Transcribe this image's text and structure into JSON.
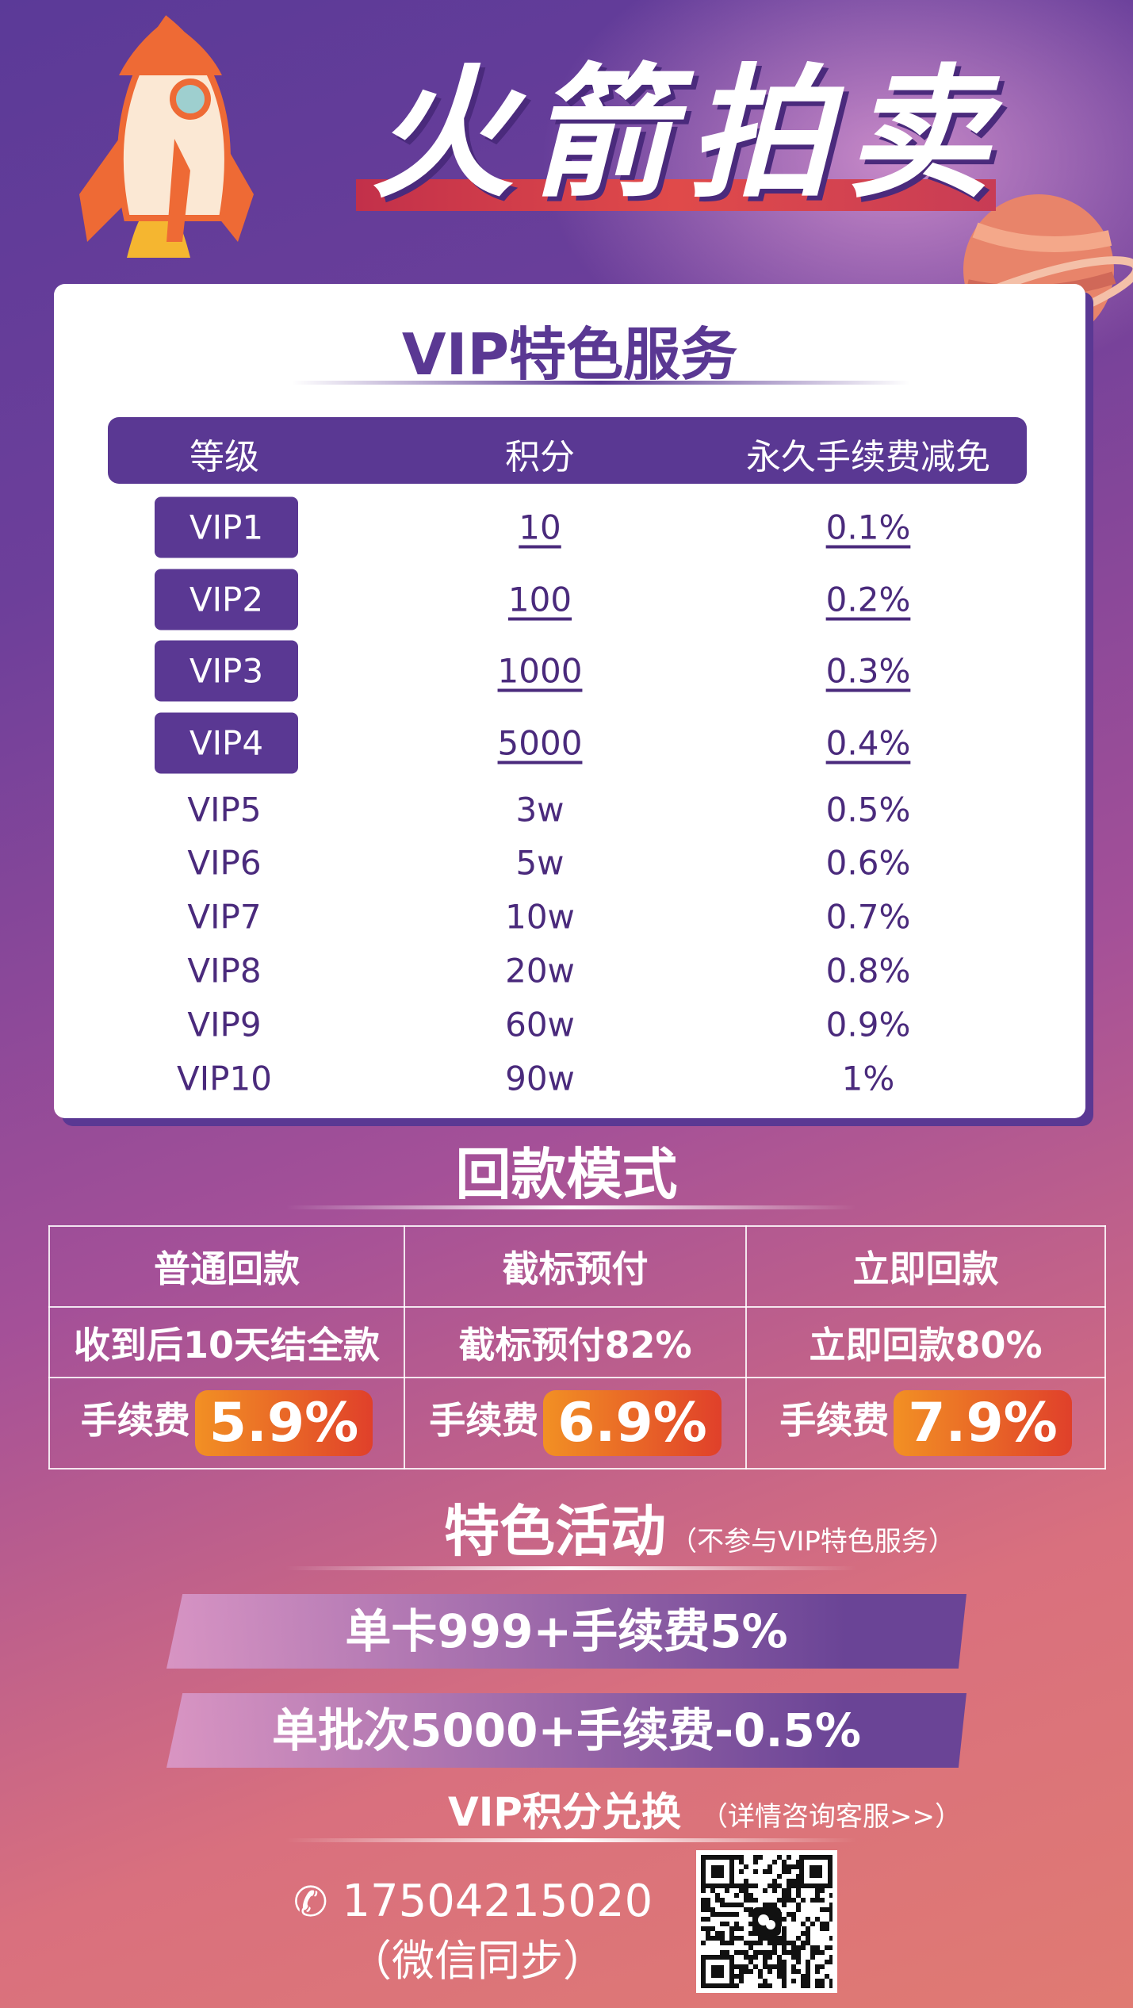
{
  "header": {
    "title": "火箭拍卖"
  },
  "vip": {
    "title": "VIP特色服务",
    "columns": [
      "等级",
      "积分",
      "永久手续费减免"
    ],
    "rows": [
      {
        "level": "VIP1",
        "points": "10",
        "discount": "0.1%",
        "highlight": true
      },
      {
        "level": "VIP2",
        "points": "100",
        "discount": "0.2%",
        "highlight": true
      },
      {
        "level": "VIP3",
        "points": "1000",
        "discount": "0.3%",
        "highlight": true
      },
      {
        "level": "VIP4",
        "points": "5000",
        "discount": "0.4%",
        "highlight": true
      },
      {
        "level": "VIP5",
        "points": "3w",
        "discount": "0.5%"
      },
      {
        "level": "VIP6",
        "points": "5w",
        "discount": "0.6%"
      },
      {
        "level": "VIP7",
        "points": "10w",
        "discount": "0.7%"
      },
      {
        "level": "VIP8",
        "points": "20w",
        "discount": "0.8%"
      },
      {
        "level": "VIP9",
        "points": "60w",
        "discount": "0.9%"
      },
      {
        "level": "VIP10",
        "points": "90w",
        "discount": "1%"
      }
    ]
  },
  "payback": {
    "title": "回款模式",
    "modes": [
      {
        "name": "普通回款",
        "desc": "收到后10天结全款",
        "fee_label": "手续费",
        "fee": "5.9%"
      },
      {
        "name": "截标预付",
        "desc": "截标预付82%",
        "fee_label": "手续费",
        "fee": "6.9%"
      },
      {
        "name": "立即回款",
        "desc": "立即回款80%",
        "fee_label": "手续费",
        "fee": "7.9%"
      }
    ]
  },
  "activity": {
    "title": "特色活动",
    "note": "（不参与VIP特色服务）",
    "items": [
      "单卡999+手续费5%",
      "单批次5000+手续费-0.5%"
    ],
    "exchange": "VIP积分兑换",
    "exchange_note": "（详情咨询客服>>）"
  },
  "contact": {
    "phone": "17504215020",
    "note": "（微信同步）",
    "icon": "phone-icon"
  },
  "colors": {
    "purple": "#5a3893",
    "orange": "#f29024",
    "red": "#e0402a"
  }
}
